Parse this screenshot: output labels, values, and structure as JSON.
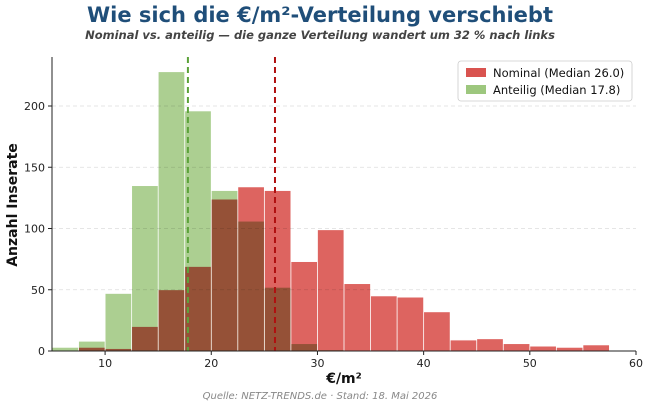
{
  "chart_data": {
    "type": "bar",
    "title": "Wie sich die €/m²-Verteilung verschiebt",
    "subtitle": "Nominal vs. anteilig — die ganze Verteilung wandert um 32 % nach links",
    "xlabel": "€/m²",
    "ylabel": "Anzahl Inserate",
    "xlim": [
      5,
      60
    ],
    "ylim": [
      0,
      240
    ],
    "xticks": [
      10,
      20,
      30,
      40,
      50,
      60
    ],
    "yticks": [
      0,
      50,
      100,
      150,
      200
    ],
    "bin_edges": [
      5,
      7.5,
      10,
      12.5,
      15,
      17.5,
      20,
      22.5,
      25,
      27.5,
      30,
      32.5,
      35,
      37.5,
      40,
      42.5,
      45,
      47.5,
      50,
      52.5,
      55,
      57.5
    ],
    "grid": "y-dashed",
    "legend_position": "top-right",
    "series": [
      {
        "name": "Nominal (Median 26.0)",
        "color": "#d9534f",
        "median": 26.0,
        "median_color": "#b01010",
        "values": [
          0,
          3,
          2,
          20,
          50,
          69,
          124,
          134,
          131,
          73,
          99,
          55,
          45,
          44,
          32,
          9,
          10,
          6,
          4,
          3,
          5
        ]
      },
      {
        "name": "Anteilig (Median 17.8)",
        "color": "#9dc77e",
        "median": 17.8,
        "median_color": "#5ca33a",
        "values": [
          3,
          8,
          47,
          135,
          228,
          196,
          131,
          106,
          52,
          6,
          1,
          0,
          0,
          0,
          0,
          0,
          0,
          0,
          0,
          0,
          0
        ]
      }
    ]
  },
  "source_note": "Quelle: NETZ-TRENDS.de · Stand: 18. Mai 2026"
}
